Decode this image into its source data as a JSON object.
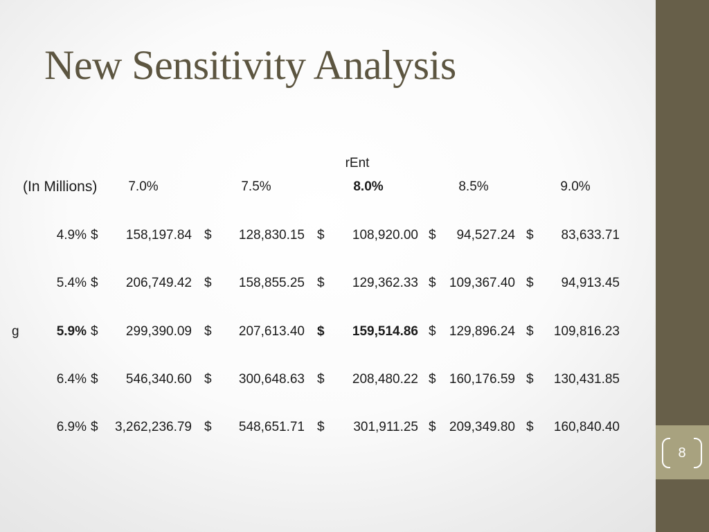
{
  "slide": {
    "title": "New Sensitivity Analysis",
    "page_number": "8"
  },
  "table": {
    "column_variable": "rEnt",
    "row_variable": "g",
    "units_label": "(In Millions)",
    "currency_symbol": "$",
    "columns": [
      "7.0%",
      "7.5%",
      "8.0%",
      "8.5%",
      "9.0%"
    ],
    "highlight_column_index": 2,
    "highlight_row_index": 2,
    "rows": [
      {
        "label": "4.9%",
        "values": [
          "158,197.84",
          "128,830.15",
          "108,920.00",
          "94,527.24",
          "83,633.71"
        ]
      },
      {
        "label": "5.4%",
        "values": [
          "206,749.42",
          "158,855.25",
          "129,362.33",
          "109,367.40",
          "94,913.45"
        ]
      },
      {
        "label": "5.9%",
        "values": [
          "299,390.09",
          "207,613.40",
          "159,514.86",
          "129,896.24",
          "109,816.23"
        ]
      },
      {
        "label": "6.4%",
        "values": [
          "546,340.60",
          "300,648.63",
          "208,480.22",
          "160,176.59",
          "130,431.85"
        ]
      },
      {
        "label": "6.9%",
        "values": [
          "3,262,236.79",
          "548,651.71",
          "301,911.25",
          "209,349.80",
          "160,840.40"
        ]
      }
    ]
  },
  "colors": {
    "title": "#5c5540",
    "sidebar": "#675f49",
    "page_box": "#a8a27f"
  }
}
